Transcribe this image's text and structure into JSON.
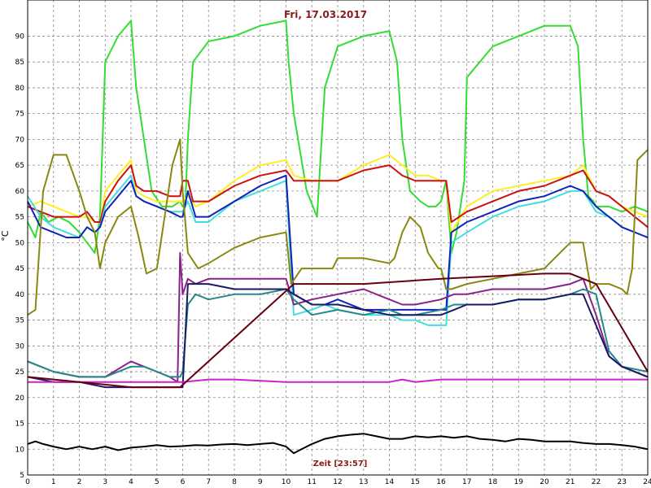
{
  "chart_data": {
    "type": "line",
    "title": "Fri, 17.03.2017",
    "xlabel": "Zeit [23:57]",
    "ylabel": "°C",
    "xlim": [
      0,
      24
    ],
    "ylim": [
      5,
      97
    ],
    "xticks": [
      0,
      1,
      2,
      3,
      4,
      5,
      6,
      7,
      8,
      9,
      10,
      11,
      12,
      13,
      14,
      15,
      16,
      17,
      18,
      19,
      20,
      21,
      22,
      23,
      24
    ],
    "yticks": [
      5,
      10,
      15,
      20,
      25,
      30,
      35,
      40,
      45,
      50,
      55,
      60,
      65,
      70,
      75,
      80,
      85,
      90
    ],
    "grid": true,
    "series": [
      {
        "color": "#33dd33",
        "x": [
          0,
          0.3,
          0.5,
          0.8,
          1.2,
          1.6,
          2.0,
          2.3,
          2.6,
          2.8,
          3.0,
          3.5,
          4.0,
          4.2,
          4.5,
          4.8,
          5.2,
          5.6,
          5.9,
          6.0,
          6.1,
          6.2,
          6.4,
          7.0,
          8.0,
          9.0,
          10.0,
          10.1,
          10.3,
          10.8,
          11.2,
          11.5,
          12.0,
          13.0,
          14.0,
          14.3,
          14.5,
          14.8,
          15.2,
          15.5,
          15.8,
          16.0,
          16.2,
          16.4,
          16.6,
          16.9,
          17.0,
          18.0,
          19.0,
          20.0,
          21.0,
          21.3,
          21.5,
          21.7,
          21.9,
          22.0,
          22.5,
          23.0,
          23.5,
          24.0
        ],
        "y": [
          54,
          51,
          56,
          54,
          55,
          54,
          52,
          50,
          48,
          55,
          85,
          90,
          93,
          80,
          70,
          60,
          57,
          57,
          58,
          57,
          57,
          70,
          85,
          89,
          90,
          92,
          93,
          85,
          75,
          60,
          55,
          80,
          88,
          90,
          91,
          85,
          70,
          60,
          58,
          57,
          57,
          58,
          62,
          48,
          52,
          62,
          82,
          88,
          90,
          92,
          92,
          88,
          70,
          59,
          58,
          57,
          57,
          56,
          57,
          56
        ]
      },
      {
        "color": "#ffee22",
        "x": [
          0,
          0.5,
          1,
          1.5,
          2,
          2.3,
          2.6,
          2.8,
          3,
          3.5,
          4,
          4.2,
          4.5,
          5,
          5.5,
          5.9,
          6,
          6.2,
          6.5,
          7,
          8,
          9,
          10,
          10.3,
          11,
          12,
          13,
          14,
          14.5,
          15,
          15.5,
          16,
          16.2,
          16.4,
          17,
          18,
          19,
          20,
          21,
          21.5,
          22,
          22.5,
          23,
          24
        ],
        "y": [
          57,
          58,
          57,
          56,
          55,
          55,
          54,
          54,
          60,
          63,
          66,
          60,
          59,
          58,
          58,
          58,
          58,
          59,
          57,
          58,
          62,
          65,
          66,
          63,
          62,
          62,
          65,
          67,
          65,
          63,
          63,
          62,
          62,
          52,
          57,
          60,
          61,
          62,
          63,
          65,
          60,
          59,
          57,
          55
        ]
      },
      {
        "color": "#cc1111",
        "x": [
          0,
          0.5,
          1,
          1.5,
          2,
          2.3,
          2.6,
          2.8,
          3,
          3.5,
          4,
          4.2,
          4.5,
          5,
          5.5,
          5.9,
          6,
          6.2,
          6.4,
          7,
          8,
          9,
          10,
          10.3,
          11,
          12,
          13,
          14,
          14.5,
          15,
          15.5,
          16,
          16.2,
          16.4,
          17,
          18,
          19,
          20,
          21,
          21.5,
          22,
          22.5,
          23,
          24
        ],
        "y": [
          57,
          56,
          55,
          55,
          55,
          56,
          54,
          54,
          58,
          62,
          65,
          61,
          60,
          60,
          59,
          59,
          62,
          62,
          58,
          58,
          61,
          63,
          64,
          62,
          62,
          62,
          64,
          65,
          63,
          62,
          62,
          62,
          62,
          54,
          56,
          58,
          60,
          61,
          63,
          64,
          60,
          59,
          57,
          53
        ]
      },
      {
        "color": "#44dddd",
        "x": [
          0,
          0.5,
          1,
          1.5,
          2,
          2.3,
          2.6,
          2.8,
          3,
          3.5,
          4,
          4.2,
          4.5,
          5,
          5.5,
          5.9,
          6,
          6.2,
          6.5,
          7,
          8,
          9,
          10,
          10.3,
          11,
          11.5,
          12,
          13,
          14,
          14.5,
          15,
          15.5,
          16,
          16.2,
          16.4,
          17,
          18,
          19,
          20,
          21,
          21.5,
          22,
          22.5,
          23,
          24
        ],
        "y": [
          59,
          55,
          53,
          52,
          51,
          53,
          52,
          53,
          57,
          60,
          63,
          59,
          58,
          57,
          56,
          56,
          56,
          58,
          54,
          54,
          58,
          60,
          62,
          36,
          37,
          38,
          37,
          36,
          36,
          35,
          35,
          34,
          34,
          34,
          50,
          52,
          55,
          57,
          58,
          60,
          60,
          56,
          55,
          53,
          51
        ]
      },
      {
        "color": "#1122bb",
        "x": [
          0,
          0.5,
          1,
          1.5,
          2,
          2.3,
          2.6,
          2.8,
          3,
          3.5,
          4,
          4.2,
          4.5,
          5,
          5.5,
          5.9,
          6,
          6.2,
          6.5,
          7,
          8,
          9,
          10,
          10.3,
          11,
          11.5,
          12,
          13,
          14,
          14.5,
          15,
          15.5,
          16,
          16.2,
          16.4,
          17,
          18,
          19,
          20,
          21,
          21.5,
          22,
          22.5,
          23,
          24
        ],
        "y": [
          58,
          53,
          52,
          51,
          51,
          53,
          52,
          53,
          56,
          59,
          62,
          59,
          58,
          57,
          56,
          55,
          55,
          60,
          55,
          55,
          58,
          61,
          63,
          40,
          38,
          38,
          39,
          37,
          37,
          37,
          37,
          37,
          37,
          37,
          52,
          54,
          56,
          58,
          59,
          61,
          60,
          57,
          55,
          53,
          51
        ]
      },
      {
        "color": "#888811",
        "x": [
          0,
          0.3,
          0.6,
          1,
          1.5,
          2,
          2.3,
          2.6,
          2.8,
          3,
          3.5,
          4,
          4.3,
          4.6,
          5,
          5.3,
          5.6,
          5.9,
          6,
          6.2,
          6.6,
          7,
          8,
          9,
          10,
          10.2,
          10.6,
          11,
          11.4,
          11.8,
          12,
          13,
          14,
          14.2,
          14.5,
          14.8,
          15.2,
          15.5,
          15.9,
          16,
          16.2,
          16.4,
          17,
          18,
          19,
          20,
          21,
          21.5,
          21.8,
          22,
          22.5,
          23,
          23.2,
          23.4,
          23.6,
          24
        ],
        "y": [
          36,
          37,
          60,
          67,
          67,
          60,
          55,
          52,
          45,
          50,
          55,
          57,
          51,
          44,
          45,
          55,
          65,
          70,
          60,
          48,
          45,
          46,
          49,
          51,
          52,
          42,
          45,
          45,
          45,
          45,
          47,
          47,
          46,
          47,
          52,
          55,
          53,
          48,
          45,
          45,
          41,
          41,
          42,
          43,
          44,
          45,
          50,
          50,
          41,
          42,
          42,
          41,
          40,
          45,
          66,
          68
        ]
      },
      {
        "color": "#882288",
        "x": [
          0,
          0.5,
          1,
          2,
          3,
          4,
          4.5,
          5,
          5.5,
          5.8,
          5.9,
          6,
          6.2,
          6.5,
          7,
          8,
          9,
          10,
          10.3,
          11,
          12,
          13,
          14,
          14.5,
          15,
          16,
          16.5,
          17,
          18,
          19,
          20,
          21,
          21.5,
          22,
          22.5,
          23,
          24
        ],
        "y": [
          27,
          26,
          25,
          24,
          24,
          27,
          26,
          25,
          24,
          23,
          48,
          40,
          43,
          42,
          43,
          43,
          43,
          43,
          38,
          39,
          40,
          41,
          39,
          38,
          38,
          39,
          40,
          40,
          41,
          41,
          41,
          42,
          43,
          36,
          28,
          26,
          24
        ]
      },
      {
        "color": "#228888",
        "x": [
          0,
          0.5,
          1,
          2,
          3,
          4,
          4.5,
          5,
          5.5,
          5.9,
          6,
          6.2,
          6.5,
          7,
          8,
          9,
          10,
          10.3,
          11,
          12,
          13,
          14,
          14.5,
          15,
          16,
          16.5,
          17,
          18,
          19,
          20,
          21,
          21.5,
          22,
          22.5,
          23,
          24
        ],
        "y": [
          27,
          26,
          25,
          24,
          24,
          26,
          26,
          25,
          24,
          24,
          25,
          38,
          40,
          39,
          40,
          40,
          41,
          39,
          36,
          37,
          36,
          37,
          36,
          36,
          37,
          38,
          38,
          38,
          39,
          39,
          40,
          41,
          40,
          29,
          26,
          25
        ]
      },
      {
        "color": "#1a1a66",
        "x": [
          0,
          1,
          2,
          3,
          4,
          5,
          5.9,
          6,
          6.2,
          6.5,
          7,
          8,
          9,
          10,
          10.3,
          11,
          12,
          13,
          14,
          14.5,
          15,
          16,
          16.5,
          17,
          18,
          19,
          20,
          21,
          21.5,
          22,
          22.5,
          23,
          24
        ],
        "y": [
          24,
          23,
          23,
          22,
          22,
          22,
          22,
          22,
          42,
          42,
          42,
          41,
          41,
          41,
          40,
          38,
          38,
          37,
          36,
          36,
          36,
          36,
          37,
          38,
          38,
          39,
          39,
          40,
          40,
          34,
          28,
          26,
          24
        ]
      },
      {
        "color": "#cc22cc",
        "x": [
          0,
          2,
          4,
          6,
          7,
          8,
          10,
          12,
          14,
          14.5,
          15,
          16,
          18,
          20,
          22,
          24
        ],
        "y": [
          23,
          23,
          23,
          23,
          23.5,
          23.5,
          23,
          23,
          23,
          23.5,
          23,
          23.5,
          23.5,
          23.5,
          23.5,
          23.5
        ]
      },
      {
        "color": "#660011",
        "x": [
          0,
          2,
          4,
          5.9,
          10.3,
          13,
          16,
          18,
          20,
          21,
          22,
          24
        ],
        "y": [
          24,
          23,
          22,
          22,
          42,
          42,
          43,
          43.5,
          44,
          44,
          42,
          25
        ]
      },
      {
        "color": "#000000",
        "x": [
          0,
          0.3,
          0.6,
          1,
          1.5,
          2,
          2.5,
          3,
          3.5,
          4,
          4.5,
          5,
          5.5,
          6,
          6.5,
          7,
          7.5,
          8,
          8.5,
          9,
          9.5,
          10,
          10.3,
          10.6,
          11,
          11.5,
          12,
          12.5,
          13,
          13.5,
          14,
          14.5,
          15,
          15.5,
          16,
          16.5,
          17,
          17.5,
          18,
          18.5,
          19,
          19.5,
          20,
          20.5,
          21,
          21.5,
          22,
          22.5,
          23,
          23.5,
          24
        ],
        "y": [
          11,
          11.5,
          11,
          10.5,
          10,
          10.5,
          10,
          10.5,
          9.8,
          10.3,
          10.5,
          10.8,
          10.5,
          10.6,
          10.8,
          10.7,
          10.9,
          11,
          10.8,
          11,
          11.2,
          10.5,
          9.2,
          10,
          11,
          12,
          12.5,
          12.8,
          13,
          12.5,
          12,
          12,
          12.5,
          12.3,
          12.5,
          12.2,
          12.5,
          12,
          11.8,
          11.5,
          12,
          11.8,
          11.5,
          11.5,
          11.5,
          11.2,
          11,
          11,
          10.8,
          10.5,
          10
        ]
      }
    ]
  }
}
